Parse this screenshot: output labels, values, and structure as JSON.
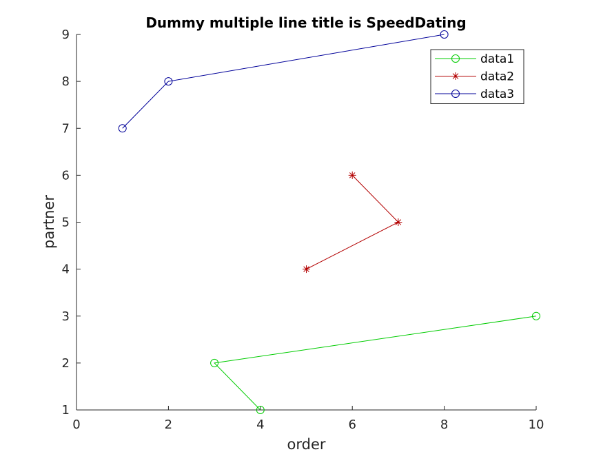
{
  "chart_data": {
    "type": "line",
    "title": "Dummy multiple line title is SpeedDating",
    "xlabel": "order",
    "ylabel": "partner",
    "xlim": [
      0,
      10
    ],
    "ylim": [
      1,
      9
    ],
    "xticks": [
      0,
      2,
      4,
      6,
      8,
      10
    ],
    "yticks": [
      1,
      2,
      3,
      4,
      5,
      6,
      7,
      8,
      9
    ],
    "grid": false,
    "legend_position": "top-right",
    "series": [
      {
        "name": "data1",
        "color": "#00cc00",
        "marker": "circle",
        "x": [
          4,
          3,
          10
        ],
        "y": [
          1,
          2,
          3
        ]
      },
      {
        "name": "data2",
        "color": "#b30000",
        "marker": "asterisk",
        "x": [
          5,
          7,
          6
        ],
        "y": [
          4,
          5,
          6
        ]
      },
      {
        "name": "data3",
        "color": "#000099",
        "marker": "circle",
        "x": [
          1,
          2,
          8
        ],
        "y": [
          7,
          8,
          9
        ]
      }
    ]
  }
}
